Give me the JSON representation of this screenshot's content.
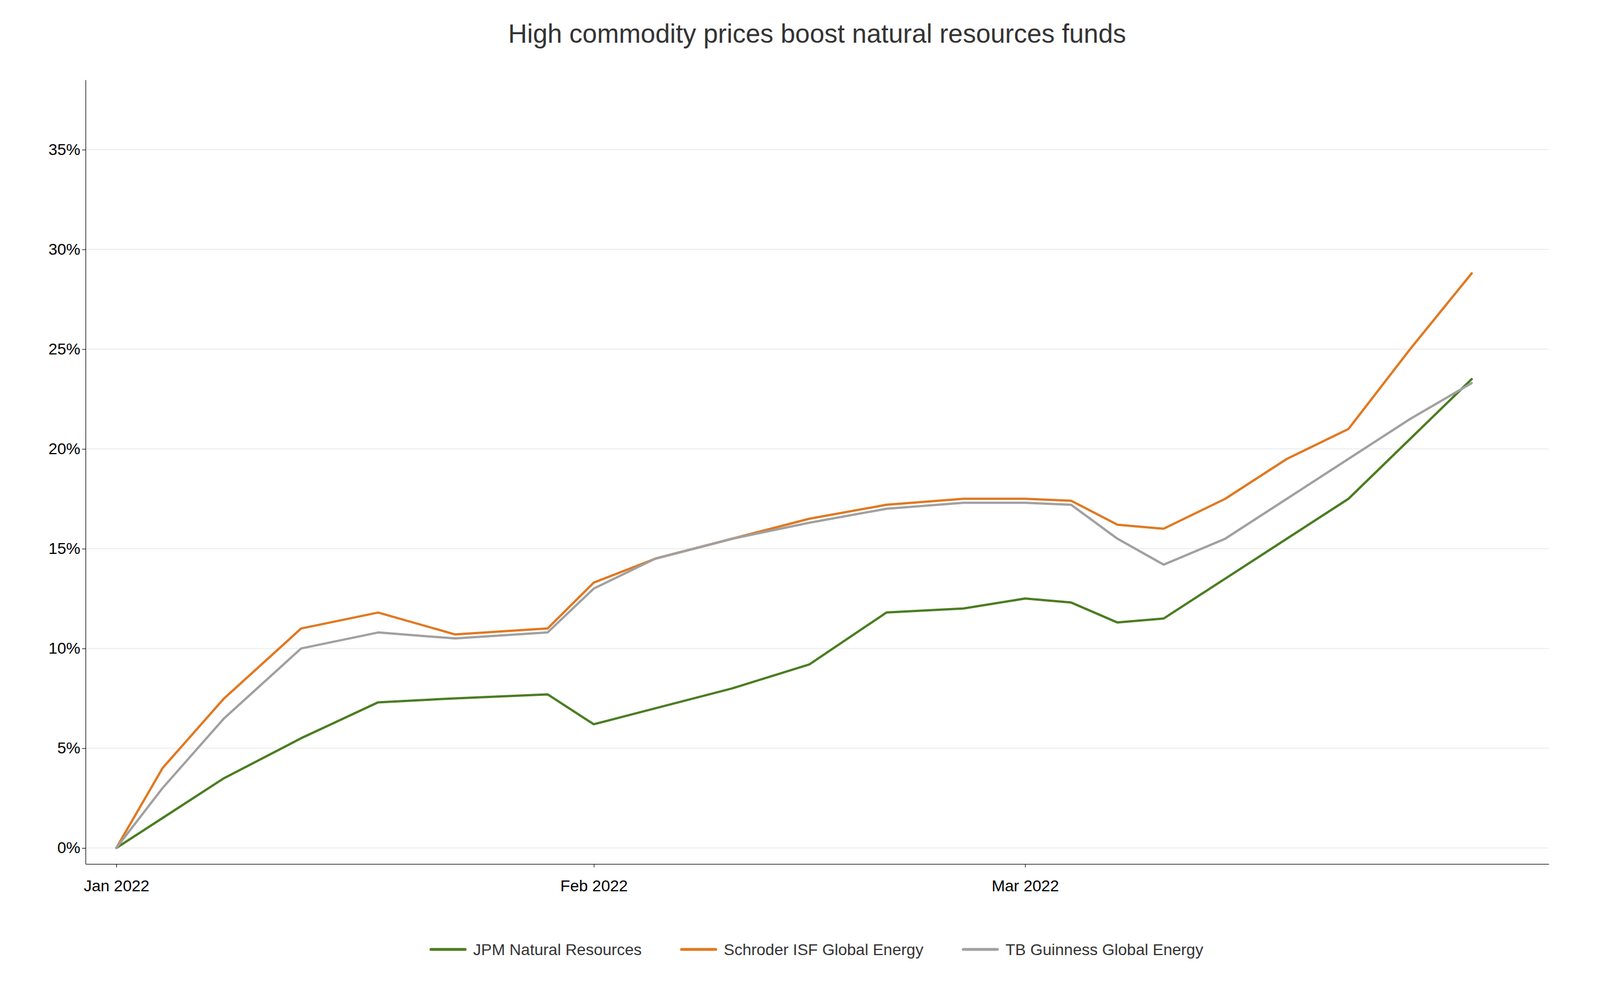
{
  "chart_data": {
    "type": "line",
    "title": "High commodity prices boost natural resources funds",
    "x": [
      0,
      3,
      7,
      12,
      17,
      22,
      28,
      31,
      35,
      40,
      45,
      50,
      55,
      59,
      62,
      65,
      68,
      72,
      76,
      80,
      84,
      88
    ],
    "series": [
      {
        "name": "JPM Natural Resources",
        "color": "#4a7c20",
        "values": [
          0.0,
          0.015,
          0.035,
          0.055,
          0.073,
          0.075,
          0.077,
          0.062,
          0.07,
          0.08,
          0.092,
          0.118,
          0.12,
          0.125,
          0.123,
          0.113,
          0.115,
          0.135,
          0.155,
          0.175,
          0.205,
          0.235
        ]
      },
      {
        "name": "Schroder ISF Global Energy",
        "color": "#e07820",
        "values": [
          0.0,
          0.04,
          0.075,
          0.11,
          0.118,
          0.107,
          0.11,
          0.133,
          0.145,
          0.155,
          0.165,
          0.172,
          0.175,
          0.175,
          0.174,
          0.162,
          0.16,
          0.175,
          0.195,
          0.21,
          0.25,
          0.288
        ]
      },
      {
        "name": "TB Guinness Global Energy",
        "color": "#a0a0a0",
        "values": [
          0.0,
          0.03,
          0.065,
          0.1,
          0.108,
          0.105,
          0.108,
          0.13,
          0.145,
          0.155,
          0.163,
          0.17,
          0.173,
          0.173,
          0.172,
          0.155,
          0.142,
          0.155,
          0.175,
          0.195,
          0.215,
          0.233
        ]
      }
    ],
    "xlim": [
      -2,
      93
    ],
    "xticks": [
      {
        "value": 0,
        "label": "Jan 2022"
      },
      {
        "value": 31,
        "label": "Feb 2022"
      },
      {
        "value": 59,
        "label": "Mar 2022"
      }
    ],
    "ylim": [
      -0.008,
      0.385
    ],
    "yticks": [
      {
        "value": 0.0,
        "label": "0%"
      },
      {
        "value": 0.05,
        "label": "5%"
      },
      {
        "value": 0.1,
        "label": "10%"
      },
      {
        "value": 0.15,
        "label": "15%"
      },
      {
        "value": 0.2,
        "label": "20%"
      },
      {
        "value": 0.25,
        "label": "25%"
      },
      {
        "value": 0.3,
        "label": "30%"
      },
      {
        "value": 0.35,
        "label": "35%"
      }
    ],
    "grid": true,
    "legend": "bottom"
  }
}
